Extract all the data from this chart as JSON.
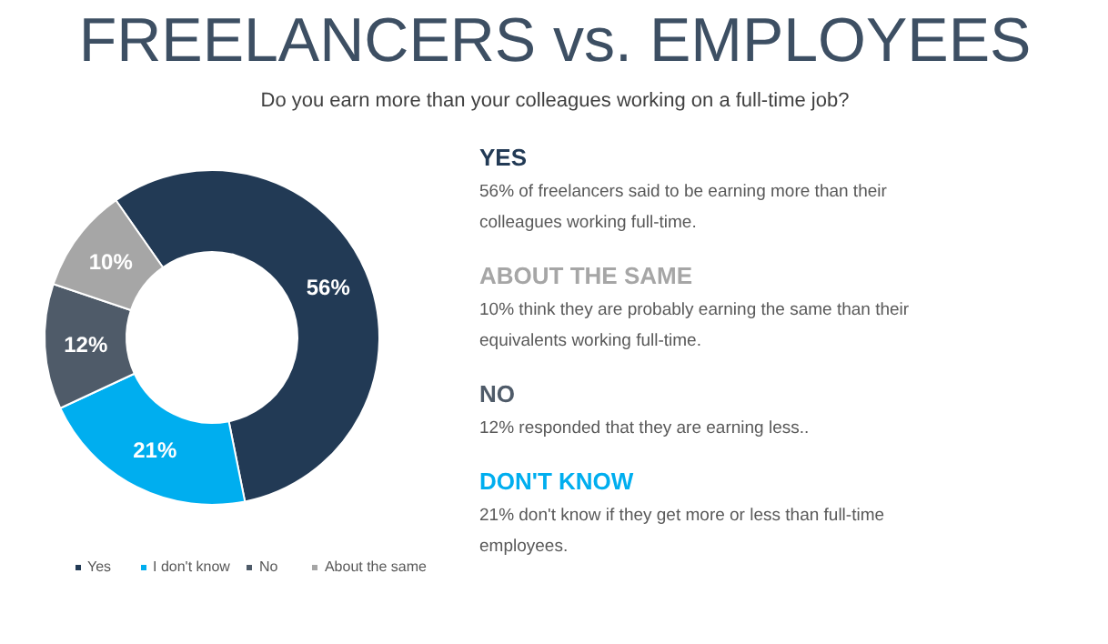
{
  "chart_data": {
    "type": "donut",
    "title": "FREELANCERS vs. EMPLOYEES",
    "subtitle": "Do you earn more than your colleagues working on a full-time job?",
    "categories": [
      "Yes",
      "I don't know",
      "No",
      "About the same"
    ],
    "values": [
      56,
      21,
      12,
      10
    ],
    "colors": [
      "#223a55",
      "#00aeef",
      "#4f5b69",
      "#a6a6a6"
    ],
    "value_labels": [
      "56%",
      "21%",
      "12%",
      "10%"
    ],
    "legend": "bottom",
    "annotations": [
      "YES",
      "56% of freelancers said to be earning more than their colleagues working full-time.",
      "ABOUT  THE  SAME",
      "10% think they are probably earning the same than their equivalents working full-time.",
      "NO",
      "12% responded that they are earning less..",
      "DON'T  KNOW",
      "21% don't know if they get more or less than full-time employees."
    ]
  }
}
